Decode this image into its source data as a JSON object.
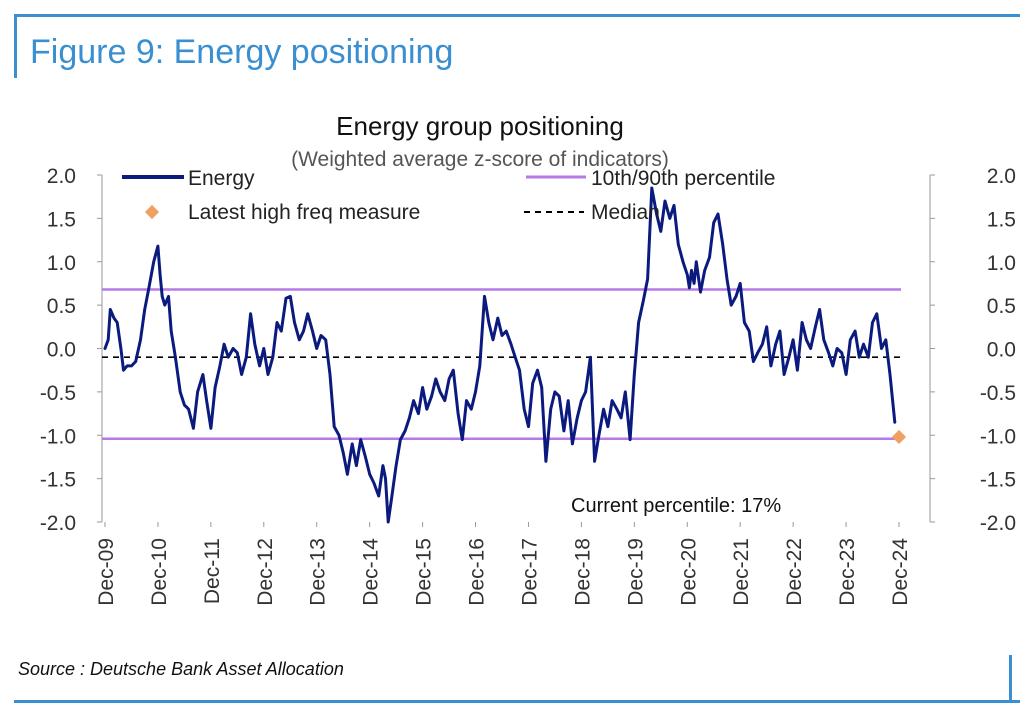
{
  "figure": {
    "title": "Figure 9: Energy positioning",
    "source": "Source : Deutsche Bank Asset Allocation"
  },
  "chart_data": {
    "type": "line",
    "title": "Energy group positioning",
    "subtitle": "(Weighted average z-score of indicators)",
    "ylim": [
      -2.0,
      2.0
    ],
    "y_ticks": [
      "2.0",
      "1.5",
      "1.0",
      "0.5",
      "0.0",
      "-0.5",
      "-1.0",
      "-1.5",
      "-2.0"
    ],
    "x_ticks": [
      "Dec-09",
      "Dec-10",
      "Dec-11",
      "Dec-12",
      "Dec-13",
      "Dec-14",
      "Dec-15",
      "Dec-16",
      "Dec-17",
      "Dec-18",
      "Dec-19",
      "Dec-20",
      "Dec-21",
      "Dec-22",
      "Dec-23",
      "Dec-24"
    ],
    "legend": {
      "energy": "Energy",
      "percentile": "10th/90th percentile",
      "latest": "Latest high freq measure",
      "median": "Median"
    },
    "annotation": "Current percentile: 17%",
    "percentile_10": -1.04,
    "percentile_90": 0.68,
    "median": -0.1,
    "latest_high_freq": {
      "x": 2025.0,
      "y": -1.02
    },
    "colors": {
      "energy": "#0b1a7e",
      "percentile": "#b57ae6",
      "latest": "#f0a060",
      "median": "#000000",
      "axis": "#999999"
    },
    "series": [
      {
        "name": "Energy",
        "x": [
          2010.0,
          2010.06,
          2010.1,
          2010.17,
          2010.23,
          2010.3,
          2010.35,
          2010.42,
          2010.5,
          2010.58,
          2010.67,
          2010.75,
          2010.83,
          2010.92,
          2011.0,
          2011.04,
          2011.08,
          2011.13,
          2011.2,
          2011.25,
          2011.33,
          2011.42,
          2011.5,
          2011.58,
          2011.67,
          2011.75,
          2011.85,
          2011.92,
          2012.0,
          2012.08,
          2012.17,
          2012.25,
          2012.33,
          2012.42,
          2012.5,
          2012.58,
          2012.67,
          2012.75,
          2012.83,
          2012.92,
          2013.0,
          2013.08,
          2013.17,
          2013.25,
          2013.33,
          2013.42,
          2013.5,
          2013.58,
          2013.67,
          2013.75,
          2013.83,
          2013.92,
          2014.0,
          2014.08,
          2014.17,
          2014.25,
          2014.33,
          2014.42,
          2014.5,
          2014.58,
          2014.67,
          2014.75,
          2014.83,
          2014.92,
          2015.0,
          2015.08,
          2015.17,
          2015.25,
          2015.3,
          2015.35,
          2015.42,
          2015.5,
          2015.58,
          2015.67,
          2015.75,
          2015.83,
          2015.92,
          2016.0,
          2016.08,
          2016.17,
          2016.25,
          2016.33,
          2016.42,
          2016.5,
          2016.58,
          2016.67,
          2016.75,
          2016.83,
          2016.92,
          2017.0,
          2017.08,
          2017.17,
          2017.25,
          2017.33,
          2017.42,
          2017.5,
          2017.58,
          2017.67,
          2017.75,
          2017.83,
          2017.92,
          2018.0,
          2018.08,
          2018.17,
          2018.25,
          2018.33,
          2018.42,
          2018.5,
          2018.58,
          2018.67,
          2018.75,
          2018.83,
          2018.92,
          2019.0,
          2019.08,
          2019.17,
          2019.25,
          2019.33,
          2019.42,
          2019.5,
          2019.58,
          2019.67,
          2019.75,
          2019.83,
          2019.92,
          2020.0,
          2020.08,
          2020.17,
          2020.25,
          2020.33,
          2020.42,
          2020.5,
          2020.58,
          2020.67,
          2020.75,
          2020.83,
          2020.92,
          2021.0,
          2021.04,
          2021.08,
          2021.13,
          2021.17,
          2021.25,
          2021.33,
          2021.42,
          2021.5,
          2021.58,
          2021.67,
          2021.75,
          2021.83,
          2021.92,
          2022.0,
          2022.08,
          2022.17,
          2022.25,
          2022.33,
          2022.42,
          2022.5,
          2022.58,
          2022.67,
          2022.75,
          2022.83,
          2022.92,
          2023.0,
          2023.08,
          2023.17,
          2023.25,
          2023.33,
          2023.42,
          2023.5,
          2023.58,
          2023.67,
          2023.75,
          2023.83,
          2023.92,
          2024.0,
          2024.08,
          2024.17,
          2024.25,
          2024.33,
          2024.42,
          2024.5,
          2024.58,
          2024.67,
          2024.75,
          2024.83,
          2024.92
        ],
        "y": [
          0.0,
          0.1,
          0.45,
          0.35,
          0.3,
          0.0,
          -0.25,
          -0.2,
          -0.2,
          -0.15,
          0.1,
          0.45,
          0.7,
          1.0,
          1.18,
          0.85,
          0.6,
          0.5,
          0.6,
          0.2,
          -0.1,
          -0.5,
          -0.65,
          -0.7,
          -0.92,
          -0.5,
          -0.3,
          -0.6,
          -0.92,
          -0.45,
          -0.2,
          0.05,
          -0.1,
          0.0,
          -0.05,
          -0.3,
          -0.1,
          0.4,
          0.05,
          -0.2,
          0.0,
          -0.3,
          -0.1,
          0.3,
          0.2,
          0.58,
          0.6,
          0.3,
          0.1,
          0.2,
          0.4,
          0.2,
          0.0,
          0.15,
          0.1,
          -0.3,
          -0.9,
          -1.0,
          -1.2,
          -1.45,
          -1.1,
          -1.35,
          -1.05,
          -1.25,
          -1.45,
          -1.55,
          -1.7,
          -1.35,
          -1.5,
          -2.0,
          -1.7,
          -1.35,
          -1.05,
          -0.95,
          -0.8,
          -0.6,
          -0.75,
          -0.45,
          -0.7,
          -0.55,
          -0.35,
          -0.5,
          -0.6,
          -0.35,
          -0.25,
          -0.75,
          -1.05,
          -0.6,
          -0.7,
          -0.5,
          -0.2,
          0.6,
          0.3,
          0.1,
          0.35,
          0.15,
          0.2,
          0.05,
          -0.1,
          -0.25,
          -0.7,
          -0.9,
          -0.4,
          -0.25,
          -0.45,
          -1.3,
          -0.7,
          -0.5,
          -0.55,
          -0.95,
          -0.6,
          -1.1,
          -0.8,
          -0.6,
          -0.5,
          -0.1,
          -1.3,
          -1.0,
          -0.7,
          -0.9,
          -0.6,
          -0.7,
          -0.8,
          -0.5,
          -1.05,
          -0.3,
          0.3,
          0.55,
          0.8,
          1.85,
          1.55,
          1.35,
          1.7,
          1.5,
          1.65,
          1.2,
          1.0,
          0.85,
          0.7,
          0.9,
          0.75,
          1.0,
          0.65,
          0.9,
          1.05,
          1.45,
          1.55,
          1.2,
          0.8,
          0.5,
          0.6,
          0.75,
          0.3,
          0.2,
          -0.15,
          -0.05,
          0.05,
          0.25,
          -0.2,
          0.05,
          0.2,
          -0.3,
          -0.1,
          0.1,
          -0.25,
          0.3,
          0.1,
          0.0,
          0.25,
          0.45,
          0.1,
          -0.05,
          -0.2,
          0.0,
          -0.05,
          -0.3,
          0.1,
          0.2,
          -0.1,
          0.05,
          -0.1,
          0.3,
          0.4,
          0.0,
          0.1,
          -0.3,
          -0.85
        ]
      }
    ]
  }
}
